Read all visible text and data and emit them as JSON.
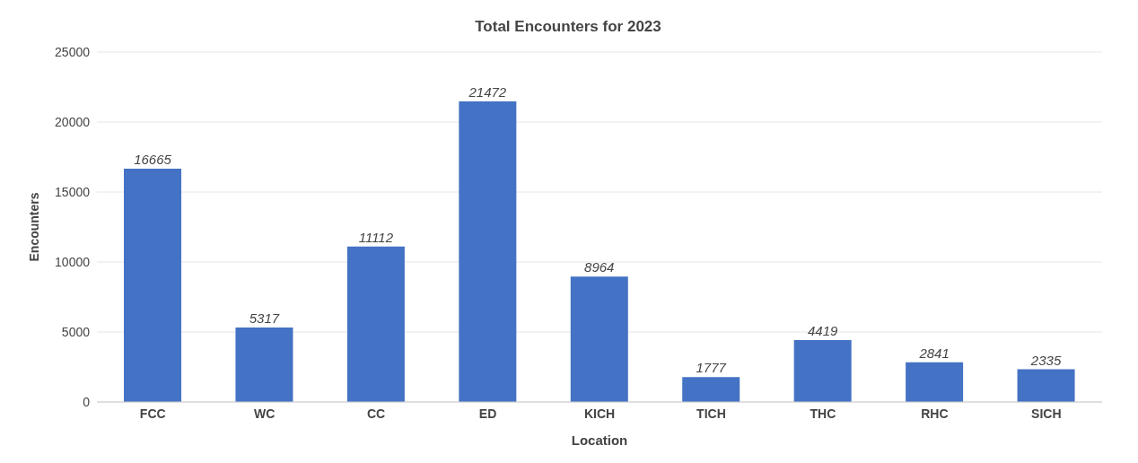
{
  "chart_data": {
    "type": "bar",
    "title": "Total Encounters for 2023",
    "xlabel": "Location",
    "ylabel": "Encounters",
    "categories": [
      "FCC",
      "WC",
      "CC",
      "ED",
      "KICH",
      "TICH",
      "THC",
      "RHC",
      "SICH"
    ],
    "values": [
      16665,
      5317,
      11112,
      21472,
      8964,
      1777,
      4419,
      2841,
      2335
    ],
    "color": "#4472c4",
    "ylim": [
      0,
      25000
    ],
    "yticks": [
      0,
      5000,
      10000,
      15000,
      20000,
      25000
    ],
    "grid": "y",
    "data_labels": true
  }
}
